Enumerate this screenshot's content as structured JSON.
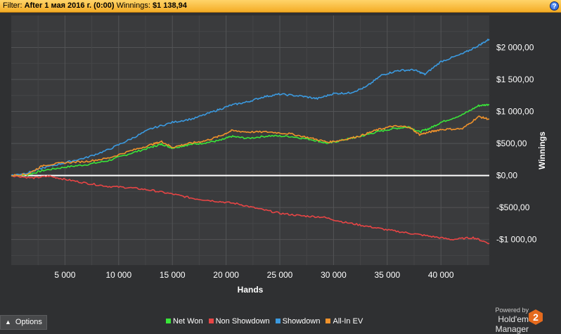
{
  "filter": {
    "label": "Filter:",
    "value": "After 1 мая 2016 г. (0:00)",
    "winnings_label": "Winnings:",
    "winnings_value": "$1 138,94"
  },
  "help_icon": "question-mark-icon",
  "options": {
    "label": "Options"
  },
  "powered": {
    "line1": "Powered by",
    "line2": "Hold'em Manager",
    "logo_text": "2"
  },
  "chart_data": {
    "type": "line",
    "xlabel": "Hands",
    "ylabel": "Winnings",
    "xlim": [
      0,
      44500
    ],
    "ylim": [
      -1400,
      2500
    ],
    "x_ticks": [
      5000,
      10000,
      15000,
      20000,
      25000,
      30000,
      35000,
      40000
    ],
    "x_tick_labels": [
      "5 000",
      "10 000",
      "15 000",
      "20 000",
      "25 000",
      "30 000",
      "35 000",
      "40 000"
    ],
    "y_ticks": [
      2000,
      1500,
      1000,
      500,
      0,
      -500,
      -1000
    ],
    "y_tick_labels": [
      "$2 000,00",
      "$1 500,00",
      "$1 000,00",
      "$500,00",
      "$0,00",
      "-$500,00",
      "-$1 000,00"
    ],
    "grid": true,
    "legend_position": "bottom",
    "series": [
      {
        "name": "Net Won",
        "color": "#39e639",
        "x": [
          0,
          1500,
          3000,
          5000,
          7000,
          9000,
          11000,
          13000,
          14000,
          15000,
          16500,
          18000,
          19500,
          20500,
          22000,
          24000,
          26000,
          28000,
          29500,
          31000,
          32500,
          34000,
          35500,
          37000,
          38000,
          39000,
          40000,
          42000,
          43500,
          44500
        ],
        "y": [
          0,
          10,
          80,
          130,
          170,
          230,
          340,
          440,
          490,
          430,
          480,
          510,
          550,
          610,
          580,
          620,
          610,
          560,
          500,
          560,
          610,
          680,
          730,
          760,
          680,
          740,
          830,
          950,
          1090,
          1110
        ]
      },
      {
        "name": "Non Showdown",
        "color": "#e84545",
        "x": [
          0,
          2000,
          3500,
          5000,
          7000,
          9000,
          11000,
          13000,
          15000,
          17000,
          19000,
          21000,
          23000,
          25000,
          27000,
          29000,
          31000,
          33000,
          35000,
          37000,
          39000,
          41000,
          43000,
          44500
        ],
        "y": [
          0,
          -40,
          -10,
          -60,
          -120,
          -170,
          -190,
          -230,
          -290,
          -360,
          -400,
          -440,
          -520,
          -590,
          -630,
          -650,
          -730,
          -790,
          -850,
          -900,
          -950,
          -1000,
          -970,
          -1060
        ]
      },
      {
        "name": "Showdown",
        "color": "#3b9ae0",
        "x": [
          0,
          1500,
          3000,
          5000,
          7000,
          9000,
          11000,
          13000,
          15000,
          17000,
          19000,
          20500,
          22000,
          23500,
          25000,
          27000,
          28500,
          30000,
          31500,
          33000,
          34500,
          36000,
          37500,
          38500,
          40000,
          42000,
          43500,
          44500
        ],
        "y": [
          0,
          40,
          120,
          200,
          280,
          400,
          560,
          730,
          830,
          890,
          1010,
          1100,
          1150,
          1230,
          1270,
          1240,
          1200,
          1280,
          1290,
          1380,
          1570,
          1640,
          1650,
          1580,
          1780,
          1900,
          2030,
          2130
        ]
      },
      {
        "name": "All-In EV",
        "color": "#f0922b",
        "x": [
          0,
          1500,
          3000,
          5000,
          7000,
          9000,
          11000,
          13000,
          14000,
          15000,
          16500,
          18000,
          19500,
          20500,
          22000,
          24000,
          26000,
          28000,
          29500,
          31000,
          32500,
          34000,
          35500,
          37000,
          38000,
          39000,
          40000,
          42000,
          43500,
          44500
        ],
        "y": [
          0,
          20,
          160,
          200,
          220,
          270,
          380,
          480,
          530,
          440,
          500,
          540,
          620,
          700,
          680,
          680,
          650,
          580,
          520,
          560,
          620,
          710,
          770,
          760,
          640,
          680,
          720,
          730,
          920,
          880
        ]
      }
    ]
  }
}
